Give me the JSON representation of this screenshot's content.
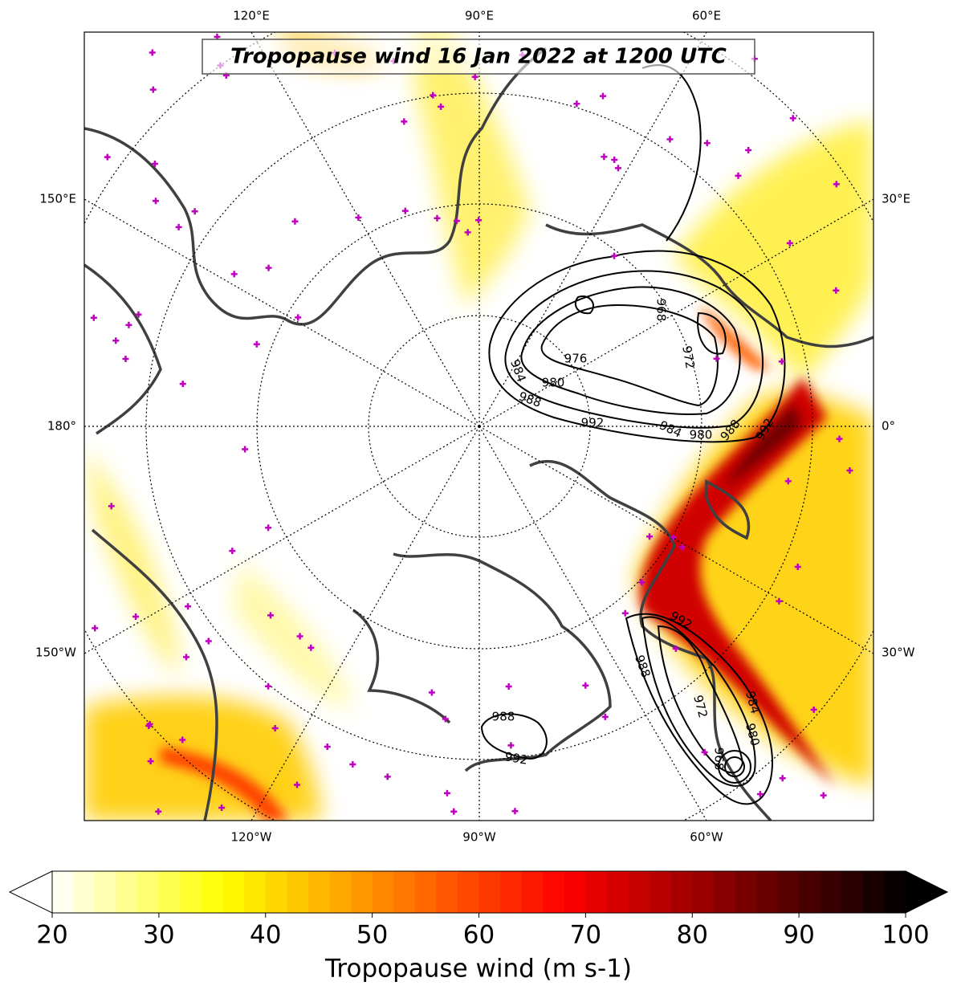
{
  "title": "Tropopause wind 16 Jan 2022 at 1200 UTC",
  "map": {
    "lon_labels_top": [
      "120°E",
      "90°E",
      "60°E"
    ],
    "lon_labels_bottom": [
      "120°W",
      "90°W",
      "60°W"
    ],
    "lat_labels_left": [
      "150°E",
      "180°",
      "150°W"
    ],
    "lat_labels_right": [
      "30°E",
      "0°",
      "30°W"
    ],
    "contour_labels": [
      "976",
      "980",
      "984",
      "988",
      "992",
      "984",
      "980",
      "988",
      "992",
      "968",
      "972",
      "992",
      "988",
      "972",
      "984",
      "980",
      "968",
      "988",
      "992"
    ]
  },
  "colorbar": {
    "xlim": [
      20,
      100
    ],
    "xticks": [
      20,
      30,
      40,
      50,
      60,
      70,
      80,
      90,
      100
    ],
    "label": "Tropopause wind (m s-1)",
    "colors": [
      "#ffffff",
      "#ffff00",
      "#ff8000",
      "#ff0000",
      "#800000",
      "#000000"
    ]
  }
}
